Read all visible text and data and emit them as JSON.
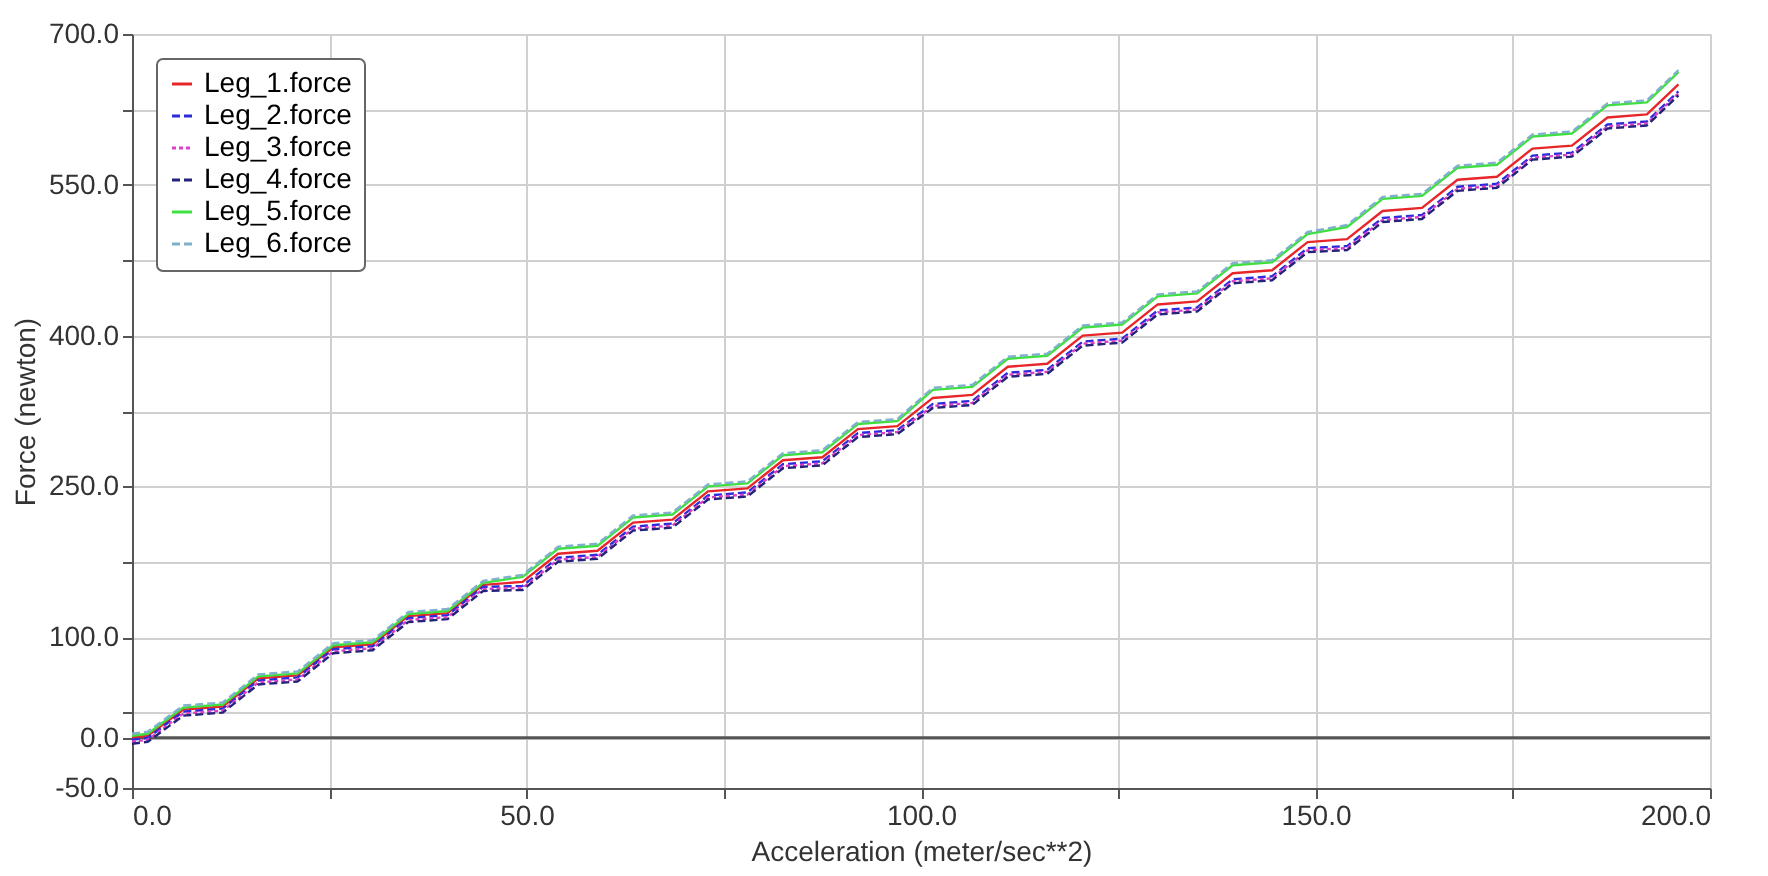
{
  "chart_data": {
    "type": "line",
    "xlabel": "Acceleration (meter/sec**2)",
    "ylabel": "Force (newton)",
    "x": [
      0,
      2,
      6.5,
      11.5,
      16,
      21,
      25.5,
      30.5,
      35,
      40,
      44.5,
      49.5,
      54,
      59,
      63.5,
      68.5,
      73,
      78,
      82.5,
      87.5,
      92,
      97,
      101.5,
      106.5,
      111,
      116,
      120.5,
      125.5,
      130,
      135,
      139.5,
      144.5,
      149,
      154,
      158.5,
      163.5,
      168,
      173,
      177.5,
      182.5,
      187,
      192,
      196
    ],
    "series": [
      {
        "name": "Leg_1.force",
        "color": "#e8262a",
        "line_style": "solid",
        "values": [
          0,
          2,
          28,
          31,
          59,
          62,
          90,
          93,
          121,
          124,
          152,
          155,
          183,
          186,
          214,
          217,
          245,
          248,
          276,
          279,
          307,
          310,
          338,
          341,
          369,
          372,
          400,
          403,
          431,
          434,
          462,
          465,
          493,
          496,
          524,
          527,
          555,
          558,
          586,
          589,
          617,
          620,
          650
        ]
      },
      {
        "name": "Leg_2.force",
        "color": "#2b2bd9",
        "line_style": "dashed",
        "values": [
          -2,
          0,
          26,
          29,
          57,
          60,
          88,
          91,
          119,
          122,
          150,
          151,
          179,
          182,
          210,
          213,
          241,
          244,
          272,
          275,
          303,
          306,
          332,
          335,
          363,
          366,
          394,
          397,
          425,
          428,
          456,
          459,
          487,
          489,
          517,
          520,
          548,
          551,
          579,
          582,
          610,
          613,
          643
        ]
      },
      {
        "name": "Leg_3.force",
        "color": "#e040c8",
        "line_style": "dotted",
        "values": [
          -4,
          -2,
          24,
          27,
          55,
          58,
          86,
          89,
          117,
          120,
          148,
          149,
          177,
          180,
          208,
          211,
          239,
          242,
          270,
          273,
          301,
          304,
          330,
          333,
          361,
          364,
          392,
          395,
          423,
          426,
          454,
          457,
          485,
          487,
          515,
          518,
          546,
          549,
          577,
          580,
          608,
          611,
          641
        ]
      },
      {
        "name": "Leg_4.force",
        "color": "#23237a",
        "line_style": "dashed",
        "values": [
          -6,
          -4,
          22,
          25,
          53,
          56,
          84,
          87,
          115,
          118,
          146,
          147,
          175,
          178,
          206,
          209,
          237,
          240,
          268,
          271,
          299,
          302,
          328,
          331,
          359,
          362,
          390,
          393,
          421,
          424,
          452,
          455,
          483,
          485,
          513,
          516,
          544,
          547,
          575,
          578,
          606,
          609,
          639
        ]
      },
      {
        "name": "Leg_5.force",
        "color": "#3ee03e",
        "line_style": "solid",
        "values": [
          2,
          4,
          30,
          33,
          61,
          64,
          92,
          95,
          123,
          126,
          154,
          160,
          188,
          191,
          219,
          222,
          250,
          253,
          281,
          284,
          312,
          315,
          346,
          349,
          377,
          380,
          408,
          411,
          439,
          442,
          470,
          473,
          501,
          508,
          536,
          539,
          567,
          570,
          598,
          601,
          629,
          632,
          662
        ]
      },
      {
        "name": "Leg_6.force",
        "color": "#7fb0cc",
        "line_style": "dashed",
        "values": [
          4,
          6,
          32,
          35,
          63,
          66,
          94,
          97,
          125,
          128,
          156,
          162,
          190,
          193,
          221,
          224,
          252,
          255,
          283,
          286,
          314,
          317,
          348,
          351,
          379,
          382,
          410,
          413,
          441,
          444,
          472,
          475,
          503,
          510,
          538,
          541,
          569,
          572,
          600,
          603,
          631,
          634,
          664
        ]
      }
    ],
    "xlim": [
      0,
      200
    ],
    "xticks": [
      {
        "value": 0,
        "label": "0.0"
      },
      {
        "value": 25,
        "label": null
      },
      {
        "value": 50,
        "label": "50.0"
      },
      {
        "value": 75,
        "label": null
      },
      {
        "value": 100,
        "label": "100.0"
      },
      {
        "value": 125,
        "label": null
      },
      {
        "value": 150,
        "label": "150.0"
      },
      {
        "value": 175,
        "label": null
      },
      {
        "value": 200,
        "label": "200.0"
      }
    ],
    "ylim": [
      -50,
      700
    ],
    "yticks": [
      {
        "value": -50,
        "label": "-50.0"
      },
      {
        "value": 0,
        "label": "0.0"
      },
      {
        "value": 25,
        "label": null
      },
      {
        "value": 100,
        "label": "100.0"
      },
      {
        "value": 175,
        "label": null
      },
      {
        "value": 250,
        "label": "250.0"
      },
      {
        "value": 325,
        "label": null
      },
      {
        "value": 400,
        "label": "400.0"
      },
      {
        "value": 475,
        "label": null
      },
      {
        "value": 550,
        "label": "550.0"
      },
      {
        "value": 625,
        "label": null
      },
      {
        "value": 700,
        "label": "700.0"
      }
    ],
    "ref_lines": [
      {
        "axis": "y",
        "value": 0,
        "label": null,
        "color": "#555555"
      }
    ],
    "grid": true,
    "legend": "top left",
    "marker": "none"
  }
}
